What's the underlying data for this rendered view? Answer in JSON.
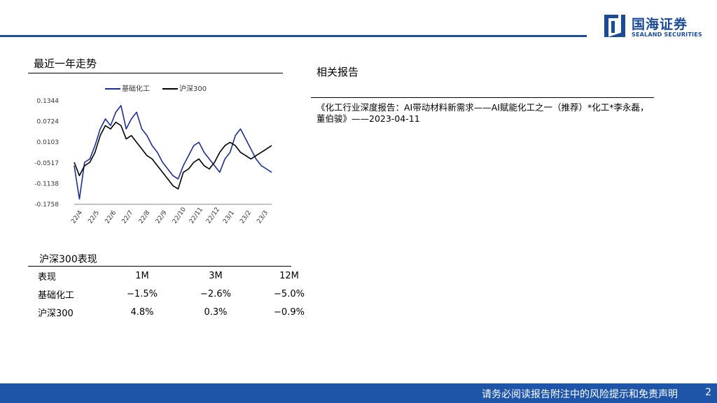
{
  "header": {
    "logo_cn": "国海证券",
    "logo_en": "SEALAND SECURITIES",
    "accent_color": "#1f4e9a"
  },
  "trend": {
    "title": "最近一年走势"
  },
  "related": {
    "title": "相关报告",
    "report_text": "《化工行业深度报告：AI带动材料新需求——AI赋能化工之一（推荐）*化工*李永磊，董伯骏》——2023-04-11"
  },
  "performance": {
    "title": "沪深300表现",
    "header": [
      "表现",
      "1M",
      "3M",
      "12M"
    ],
    "rows": [
      [
        "基础化工",
        "−1.5%",
        "−2.6%",
        "−5.0%"
      ],
      [
        "沪深300",
        "4.8%",
        "0.3%",
        "−0.9%"
      ]
    ]
  },
  "footer": {
    "disclaimer": "请务必阅读报告附注中的风险提示和免责声明",
    "page": "2"
  },
  "chart_data": {
    "type": "line",
    "y_ticks": [
      "0.1344",
      "0.0724",
      "0.0103",
      "-0.0517",
      "-0.1138",
      "-0.1758"
    ],
    "ylim": [
      -0.1758,
      0.1344
    ],
    "x_ticks": [
      "22/4",
      "22/5",
      "22/6",
      "22/7",
      "22/8",
      "22/9",
      "22/10",
      "22/11",
      "22/12",
      "23/1",
      "23/2",
      "23/3"
    ],
    "series": [
      {
        "name": "基础化工",
        "color": "#1f2f8f",
        "values": [
          -0.06,
          -0.16,
          -0.05,
          -0.04,
          0.0,
          0.05,
          0.08,
          0.06,
          0.1,
          0.12,
          0.05,
          0.08,
          0.1,
          0.05,
          0.03,
          0.0,
          -0.02,
          -0.05,
          -0.07,
          -0.09,
          -0.1,
          -0.06,
          -0.03,
          0.0,
          0.01,
          -0.02,
          -0.04,
          -0.06,
          -0.08,
          -0.04,
          -0.02,
          0.03,
          0.05,
          0.02,
          -0.01,
          -0.04,
          -0.06,
          -0.07,
          -0.08
        ]
      },
      {
        "name": "沪深300",
        "color": "#000000",
        "values": [
          -0.05,
          -0.09,
          -0.06,
          -0.05,
          -0.02,
          0.03,
          0.06,
          0.05,
          0.07,
          0.06,
          0.02,
          0.03,
          0.01,
          -0.01,
          -0.03,
          -0.04,
          -0.06,
          -0.08,
          -0.1,
          -0.12,
          -0.13,
          -0.08,
          -0.07,
          -0.05,
          -0.04,
          -0.06,
          -0.07,
          -0.05,
          -0.02,
          0.0,
          0.01,
          0.0,
          -0.02,
          -0.03,
          -0.04,
          -0.03,
          -0.02,
          -0.01,
          0.0
        ]
      }
    ]
  }
}
